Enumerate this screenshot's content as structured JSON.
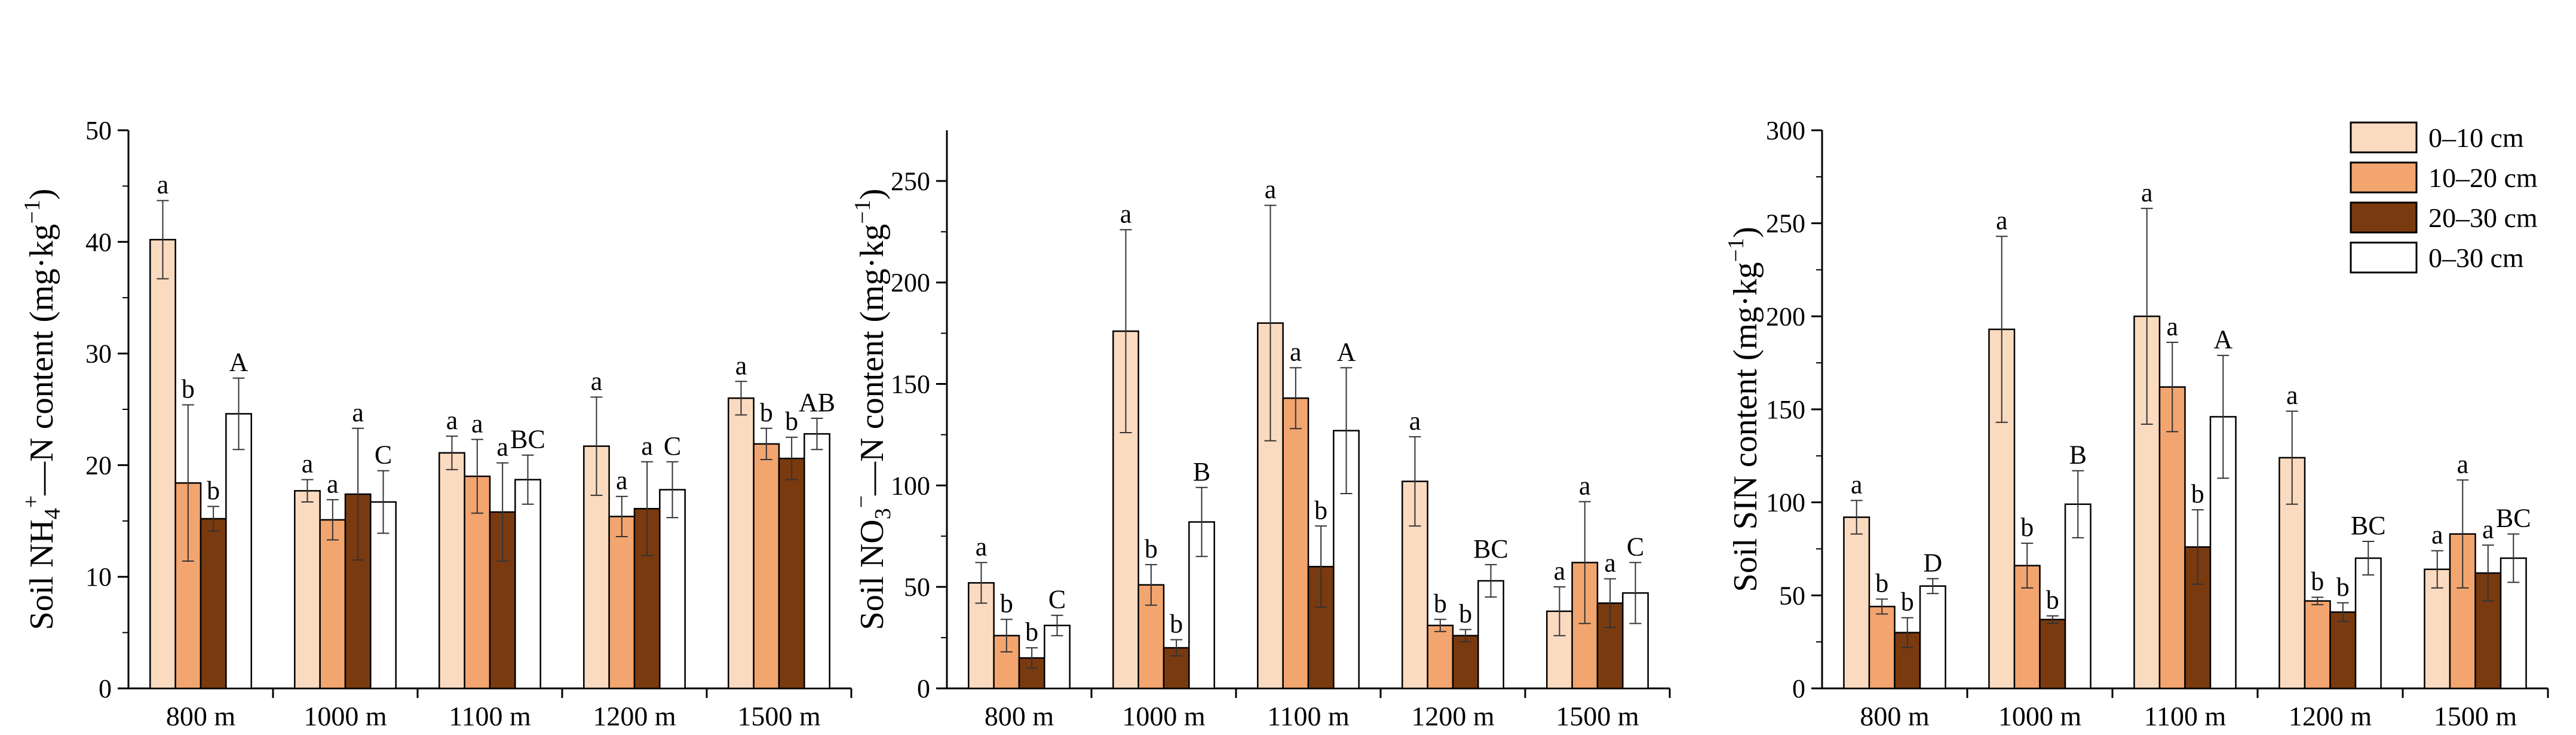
{
  "colors": {
    "0-10": "#FBDBC0",
    "10-20": "#F2A56F",
    "20-30": "#7A3A0F",
    "0-30": "#FFFFFF"
  },
  "legend": [
    "0–10 cm",
    "10–20 cm",
    "20–30 cm",
    "0–30 cm"
  ],
  "chart_data": [
    {
      "type": "bar",
      "ylabel": {
        "prefix": "Soil NH",
        "sub": "4",
        "sup": "+",
        "suffix": "—N content (mg·kg",
        "unitSup": "−1",
        "close": ")"
      },
      "ylim": [
        0,
        50
      ],
      "yticks": [
        0,
        10,
        20,
        30,
        40,
        50
      ],
      "categories": [
        "800 m",
        "1000 m",
        "1100 m",
        "1200 m",
        "1500 m"
      ],
      "series": [
        {
          "name": "0–10 cm",
          "values": [
            40.2,
            17.7,
            21.1,
            21.7,
            26.0
          ],
          "errors": [
            3.5,
            1.0,
            1.5,
            4.4,
            1.5
          ],
          "letters": [
            "a",
            "a",
            "a",
            "a",
            "a"
          ]
        },
        {
          "name": "10–20 cm",
          "values": [
            18.4,
            15.1,
            19.0,
            15.4,
            21.9
          ],
          "errors": [
            7.0,
            1.8,
            3.3,
            1.8,
            1.4
          ],
          "letters": [
            "b",
            "a",
            "a",
            "a",
            "b"
          ]
        },
        {
          "name": "20–30 cm",
          "values": [
            15.2,
            17.4,
            15.8,
            16.1,
            20.6
          ],
          "errors": [
            1.1,
            5.9,
            4.4,
            4.2,
            1.9
          ],
          "letters": [
            "b",
            "a",
            "a",
            "a",
            "b"
          ]
        },
        {
          "name": "0–30 cm",
          "values": [
            24.6,
            16.7,
            18.7,
            17.8,
            22.8
          ],
          "errors": [
            3.2,
            2.8,
            2.2,
            2.5,
            1.4
          ],
          "letters": [
            "A",
            "C",
            "BC",
            "C",
            "AB"
          ]
        }
      ]
    },
    {
      "type": "bar",
      "ylabel": {
        "prefix": "Soil NO",
        "sub": "3",
        "sup": "−",
        "suffix": "—N content (mg·kg",
        "unitSup": "−1",
        "close": ")"
      },
      "ylim": [
        0,
        275
      ],
      "yticks": [
        0,
        50,
        100,
        150,
        200,
        250
      ],
      "categories": [
        "800 m",
        "1000 m",
        "1100 m",
        "1200 m",
        "1500 m"
      ],
      "series": [
        {
          "name": "0–10 cm",
          "values": [
            52,
            176,
            180,
            102,
            38
          ],
          "errors": [
            10,
            50,
            58,
            22,
            12
          ],
          "letters": [
            "a",
            "a",
            "a",
            "a",
            "a"
          ]
        },
        {
          "name": "10–20 cm",
          "values": [
            26,
            51,
            143,
            31,
            62
          ],
          "errors": [
            8,
            10,
            15,
            3,
            30
          ],
          "letters": [
            "b",
            "b",
            "a",
            "b",
            "a"
          ]
        },
        {
          "name": "20–30 cm",
          "values": [
            15,
            20,
            60,
            26,
            42
          ],
          "errors": [
            5,
            4,
            20,
            3,
            12
          ],
          "letters": [
            "b",
            "b",
            "b",
            "b",
            "a"
          ]
        },
        {
          "name": "0–30 cm",
          "values": [
            31,
            82,
            127,
            53,
            47
          ],
          "errors": [
            5,
            17,
            31,
            8,
            15
          ],
          "letters": [
            "C",
            "B",
            "A",
            "BC",
            "C"
          ]
        }
      ]
    },
    {
      "type": "bar",
      "ylabel": {
        "prefix": "Soil SIN content (mg·kg",
        "sub": "",
        "sup": "",
        "suffix": "",
        "unitSup": "−1",
        "close": ")"
      },
      "ylim": [
        0,
        300
      ],
      "yticks": [
        0,
        50,
        100,
        150,
        200,
        250,
        300
      ],
      "categories": [
        "800 m",
        "1000 m",
        "1100 m",
        "1200 m",
        "1500 m"
      ],
      "series": [
        {
          "name": "0–10 cm",
          "values": [
            92,
            193,
            200,
            124,
            64
          ],
          "errors": [
            9,
            50,
            58,
            25,
            10
          ],
          "letters": [
            "a",
            "a",
            "a",
            "a",
            "a"
          ]
        },
        {
          "name": "10–20 cm",
          "values": [
            44,
            66,
            162,
            47,
            83
          ],
          "errors": [
            4,
            12,
            24,
            2,
            29
          ],
          "letters": [
            "b",
            "b",
            "a",
            "b",
            "a"
          ]
        },
        {
          "name": "20–30 cm",
          "values": [
            30,
            37,
            76,
            41,
            62
          ],
          "errors": [
            8,
            2,
            20,
            5,
            15
          ],
          "letters": [
            "b",
            "b",
            "b",
            "b",
            "a"
          ]
        },
        {
          "name": "0–30 cm",
          "values": [
            55,
            99,
            146,
            70,
            70
          ],
          "errors": [
            4,
            18,
            33,
            9,
            13
          ],
          "letters": [
            "D",
            "B",
            "A",
            "BC",
            "BC"
          ]
        }
      ]
    }
  ]
}
